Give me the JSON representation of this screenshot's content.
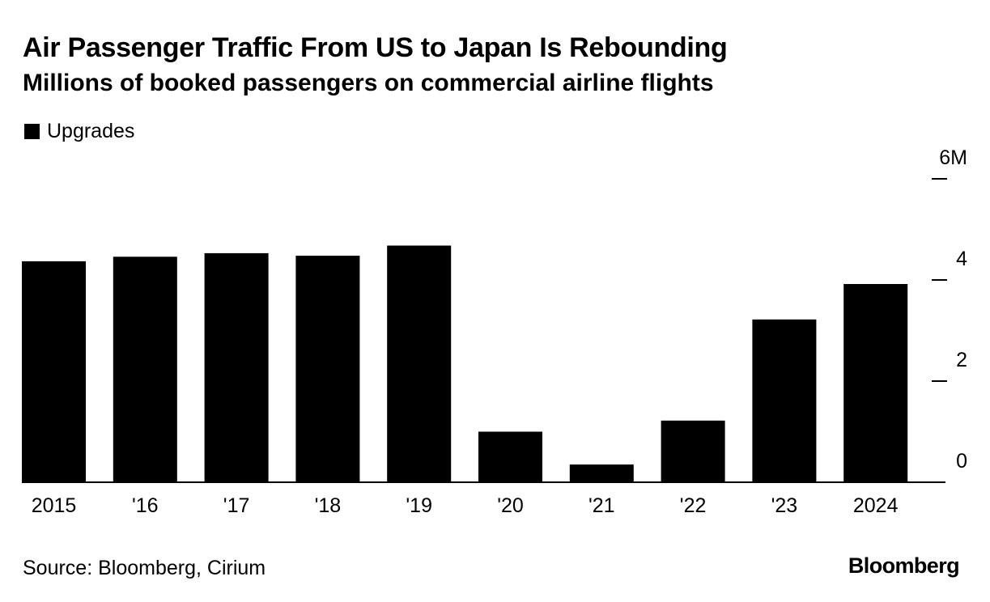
{
  "chart_data": {
    "type": "bar",
    "title": "Air Passenger Traffic From US to Japan Is Rebounding",
    "subtitle": "Millions of booked passengers on commercial airline flights",
    "legend": "Upgrades",
    "categories": [
      "2015",
      "'16",
      "'17",
      "'18",
      "'19",
      "'20",
      "'21",
      "'22",
      "'23",
      "2024"
    ],
    "series": [
      {
        "name": "Upgrades",
        "values": [
          4.37,
          4.46,
          4.53,
          4.48,
          4.68,
          1.0,
          0.35,
          1.22,
          3.22,
          3.92
        ]
      }
    ],
    "ylim": [
      0,
      6
    ],
    "y_ticks": [
      0,
      2,
      4,
      6
    ],
    "y_tick_labels": [
      "0",
      "2",
      "4",
      "6M"
    ],
    "xlabel": "",
    "ylabel": "",
    "grid": false,
    "legend_position": "top-left",
    "y_axis_side": "right",
    "colors": {
      "bar": "#000000",
      "axis": "#000000",
      "background": "#ffffff"
    }
  },
  "footer": {
    "source": "Source: Bloomberg, Cirium",
    "brand": "Bloomberg"
  }
}
